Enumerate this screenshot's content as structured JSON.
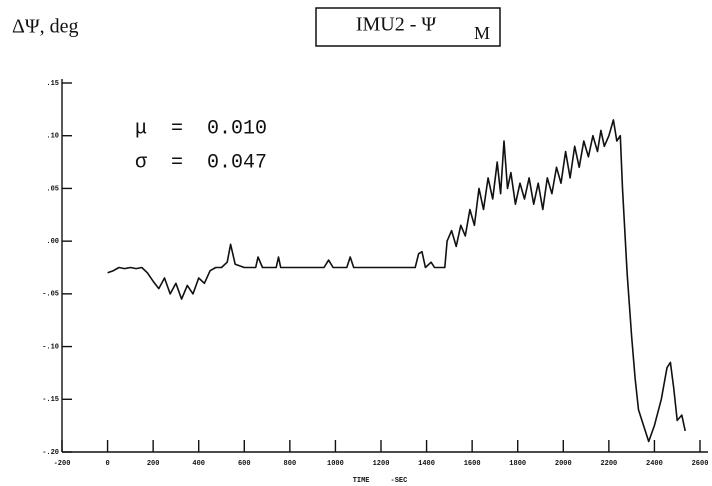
{
  "chart_data": {
    "type": "line",
    "ylabel": "ΔΨ, deg",
    "title": "IMU2 - Ψ",
    "title_subscript": "M",
    "annotations": [
      "μ  =  0.010",
      "σ  =  0.047"
    ],
    "xlabel": "TIME     -SEC",
    "color": "#111111",
    "xlim": [
      -200,
      2600
    ],
    "xticks": [
      -200,
      0,
      200,
      400,
      600,
      800,
      1000,
      1200,
      1400,
      1600,
      1800,
      2000,
      2200,
      2400,
      2600
    ],
    "ylim": [
      -0.2,
      0.15
    ],
    "yticks": [
      {
        "value": 0.15,
        "label": ".15"
      },
      {
        "value": 0.1,
        "label": ".10"
      },
      {
        "value": 0.05,
        "label": ".05"
      },
      {
        "value": 0,
        "label": ".00"
      },
      {
        "value": -0.05,
        "label": "-.05"
      },
      {
        "value": -0.1,
        "label": "-.10"
      },
      {
        "value": -0.15,
        "label": "-.15"
      },
      {
        "value": -0.2,
        "label": "-.20"
      }
    ],
    "x": [
      0,
      25,
      50,
      75,
      100,
      125,
      150,
      175,
      200,
      225,
      250,
      275,
      300,
      325,
      350,
      375,
      400,
      425,
      450,
      475,
      500,
      525,
      540,
      560,
      600,
      650,
      660,
      680,
      740,
      750,
      760,
      850,
      950,
      970,
      990,
      1050,
      1065,
      1080,
      1200,
      1350,
      1365,
      1380,
      1395,
      1420,
      1435,
      1480,
      1490,
      1510,
      1530,
      1550,
      1570,
      1590,
      1610,
      1630,
      1650,
      1670,
      1690,
      1710,
      1725,
      1740,
      1755,
      1770,
      1790,
      1810,
      1830,
      1850,
      1870,
      1890,
      1910,
      1930,
      1950,
      1970,
      1990,
      2010,
      2030,
      2050,
      2070,
      2090,
      2110,
      2130,
      2150,
      2165,
      2180,
      2200,
      2220,
      2235,
      2250,
      2260,
      2280,
      2300,
      2315,
      2330,
      2345,
      2375,
      2400,
      2430,
      2455,
      2470,
      2485,
      2500,
      2520,
      2535
    ],
    "values": [
      -0.03,
      -0.028,
      -0.025,
      -0.026,
      -0.025,
      -0.026,
      -0.025,
      -0.03,
      -0.038,
      -0.045,
      -0.035,
      -0.05,
      -0.04,
      -0.055,
      -0.042,
      -0.05,
      -0.035,
      -0.04,
      -0.028,
      -0.025,
      -0.025,
      -0.02,
      -0.003,
      -0.022,
      -0.025,
      -0.025,
      -0.015,
      -0.025,
      -0.025,
      -0.015,
      -0.025,
      -0.025,
      -0.025,
      -0.018,
      -0.025,
      -0.025,
      -0.015,
      -0.025,
      -0.025,
      -0.025,
      -0.012,
      -0.01,
      -0.025,
      -0.02,
      -0.025,
      -0.025,
      0.0,
      0.01,
      -0.005,
      0.015,
      0.005,
      0.03,
      0.015,
      0.05,
      0.03,
      0.06,
      0.04,
      0.075,
      0.045,
      0.095,
      0.05,
      0.065,
      0.035,
      0.055,
      0.04,
      0.06,
      0.035,
      0.055,
      0.03,
      0.06,
      0.045,
      0.07,
      0.055,
      0.085,
      0.06,
      0.09,
      0.07,
      0.095,
      0.08,
      0.1,
      0.085,
      0.105,
      0.09,
      0.1,
      0.115,
      0.095,
      0.1,
      0.05,
      -0.03,
      -0.09,
      -0.13,
      -0.16,
      -0.17,
      -0.19,
      -0.175,
      -0.15,
      -0.12,
      -0.115,
      -0.14,
      -0.17,
      -0.165,
      -0.18
    ]
  }
}
